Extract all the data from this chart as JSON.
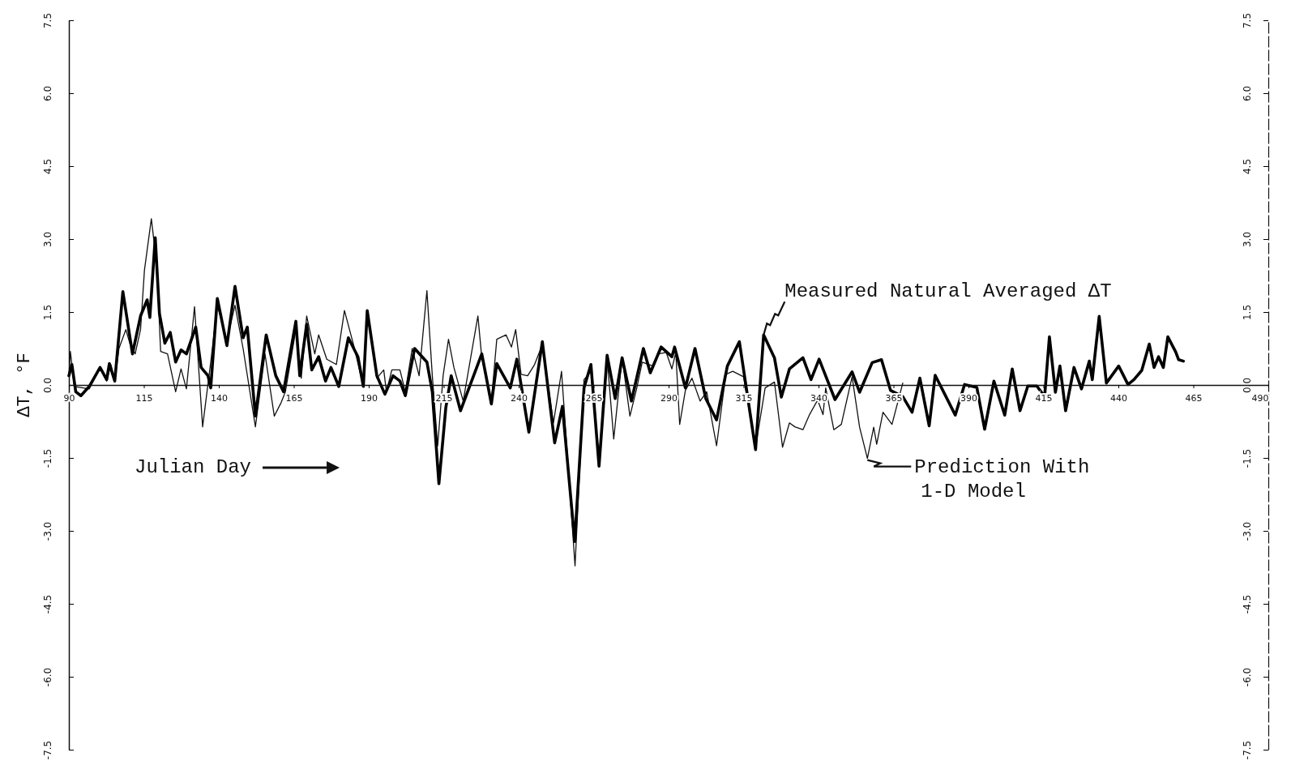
{
  "chart_data": {
    "type": "line",
    "xlabel": "Julian Day",
    "ylabel": "ΔT, °F",
    "xlim": [
      90,
      490
    ],
    "xticks": [
      90,
      115,
      140,
      165,
      190,
      215,
      240,
      265,
      290,
      315,
      340,
      365,
      390,
      415,
      440,
      465,
      490
    ],
    "ylim": [
      -7.5,
      7.5
    ],
    "yticks": [
      {
        "value": 7.5,
        "label": "7.5"
      },
      {
        "value": 6,
        "label": "6.0"
      },
      {
        "value": 4.5,
        "label": "4.5"
      },
      {
        "value": 3,
        "label": "3.0"
      },
      {
        "value": 1.5,
        "label": "1.5"
      },
      {
        "value": 0,
        "label": "0.0"
      },
      {
        "value": -1.5,
        "label": "-1.5"
      },
      {
        "value": -3,
        "label": "-3.0"
      },
      {
        "value": -4.5,
        "label": "-4.5"
      },
      {
        "value": -6,
        "label": "-6.0"
      },
      {
        "value": -7.5,
        "label": "-7.5"
      }
    ],
    "y2lim": [
      -7.5,
      7.5
    ],
    "y2ticks": [
      {
        "value": 7.5,
        "label": "7.5"
      },
      {
        "value": 6,
        "label": "6.0"
      },
      {
        "value": 4.5,
        "label": "4.5"
      },
      {
        "value": 3,
        "label": "3.0"
      },
      {
        "value": 1.5,
        "label": "1.5"
      },
      {
        "value": 0,
        "label": "0.0"
      },
      {
        "value": -1.5,
        "label": "-1.5"
      },
      {
        "value": -3,
        "label": "-3.0"
      },
      {
        "value": -4.5,
        "label": "-4.5"
      },
      {
        "value": -6,
        "label": "-6.0"
      },
      {
        "value": -7.5,
        "label": "-7.5"
      }
    ],
    "grid": false,
    "marker": "none",
    "line_style": "solid",
    "annotations": [
      {
        "text": "Measured Natural Averaged ΔT",
        "x": 321.7,
        "y": 1.03
      },
      {
        "text": "Prediction With\n1-D Model",
        "x": 356.3,
        "y": -1.51
      }
    ],
    "series": [
      {
        "color": "#111111",
        "x": [
          90,
          90.5,
          91.8,
          96.8,
          100.4,
          102.6,
          104,
          105.3,
          106.7,
          109,
          110.3,
          112.1,
          113.9,
          115.2,
          117.5,
          119.3,
          120.6,
          122.9,
          125.6,
          127.4,
          129.2,
          131.9,
          134.6,
          137.3,
          139.5,
          142.7,
          145.4,
          148.1,
          152.2,
          155.4,
          158.5,
          160.8,
          162.2,
          165.7,
          167.5,
          169.3,
          172,
          173.3,
          176,
          179.2,
          181.9,
          185,
          188.2,
          189.5,
          192.7,
          195,
          195.9,
          197.7,
          200.4,
          202.2,
          204.5,
          206.8,
          209.4,
          211.2,
          213,
          214.8,
          216.6,
          218.4,
          221.5,
          226.4,
          227.7,
          230.9,
          232.7,
          235.8,
          237.6,
          239,
          240.8,
          243,
          245.3,
          247.9,
          251.6,
          254.3,
          258.8,
          261.8,
          264.1,
          266.8,
          269.5,
          271.7,
          274.5,
          277.1,
          279.4,
          281.2,
          284.8,
          286.6,
          289.2,
          291.1,
          292.4,
          293.7,
          295.6,
          297.8,
          300.5,
          302.7,
          306,
          309.1,
          311.4,
          315,
          319,
          322.2,
          325.3,
          328,
          330.3,
          332.1,
          334.8,
          337,
          339.7,
          341.5,
          342.4,
          345.1,
          347.6,
          351.2,
          353.7,
          356.3,
          358.4,
          359.4,
          361.5,
          364.5,
          368.1
        ],
        "values": [
          0.19,
          0.69,
          -0.03,
          -0.08,
          0.36,
          0.08,
          0.42,
          0.08,
          0.75,
          1.14,
          0.86,
          0.64,
          1.14,
          2.36,
          3.42,
          2.47,
          0.69,
          0.64,
          -0.14,
          0.33,
          -0.08,
          1.61,
          -0.86,
          0.47,
          1.64,
          0.92,
          1.64,
          0.75,
          -0.86,
          0.64,
          -0.64,
          -0.36,
          -0.14,
          1.14,
          0.14,
          1.42,
          0.64,
          1.03,
          0.53,
          0.42,
          1.53,
          0.81,
          -0.03,
          1.53,
          0.14,
          0.31,
          -0.14,
          0.31,
          0.31,
          -0.14,
          0.75,
          0.19,
          1.94,
          0.19,
          -1.25,
          0.19,
          0.94,
          0.36,
          -0.33,
          1.42,
          0.56,
          -0.33,
          0.94,
          1.03,
          0.78,
          1.14,
          0.22,
          0.19,
          0.42,
          0.83,
          -0.78,
          0.28,
          -3.72,
          0.11,
          0.28,
          -1.5,
          0.56,
          -1.11,
          0.56,
          -0.64,
          -0.06,
          0.47,
          0.39,
          0.64,
          0.67,
          0.33,
          0.67,
          -0.81,
          -0.11,
          0.14,
          -0.33,
          -0.14,
          -1.25,
          0.22,
          0.28,
          0.17,
          -1.28,
          -0.06,
          0.06,
          -1.28,
          -0.78,
          -0.86,
          -0.92,
          -0.61,
          -0.31,
          -0.61,
          -0.06,
          -0.92,
          -0.81,
          0.17,
          -0.87,
          -1.51,
          -0.87,
          -1.22,
          -0.56,
          -0.81,
          0.04
        ]
      },
      {
        "color": "#000000",
        "x": [
          90,
          91,
          92.3,
          94,
          96.8,
          100.4,
          102.6,
          103.5,
          105.3,
          108,
          111.2,
          113.9,
          116.1,
          117,
          118.8,
          120.2,
          122,
          123.8,
          125.6,
          127.4,
          129.2,
          132.3,
          134.1,
          136.4,
          137.3,
          139.5,
          142.7,
          145.4,
          148.1,
          149.5,
          152.2,
          155.8,
          159,
          161.6,
          165.7,
          167,
          169.3,
          171,
          173.3,
          175.6,
          177.4,
          180,
          183.2,
          186.4,
          188.2,
          189.5,
          192.7,
          195.4,
          198.1,
          200.4,
          202.2,
          205.3,
          209.4,
          211.2,
          213.4,
          215.7,
          217.5,
          220.6,
          227.7,
          230.9,
          232.7,
          237.2,
          239.4,
          243.4,
          247.9,
          252,
          254.6,
          258.7,
          261.8,
          264.1,
          266.8,
          269.5,
          272.2,
          274.5,
          277.6,
          281.6,
          283.9,
          287.5,
          291.1,
          292,
          295.6,
          298.8,
          302.4,
          306,
          309.6,
          313.6,
          319,
          321.7,
          325.3,
          327.6,
          330.3,
          334.8,
          337.5,
          340.2,
          345.5,
          351.2,
          353.7,
          357.9,
          361,
          364,
          368.1,
          371.2,
          373.8,
          376.9,
          378.9,
          382.5,
          385.6,
          388.7,
          392.8,
          395.4,
          398.5,
          402.1,
          404.6,
          407.2,
          409.8,
          412.8,
          415.4,
          417,
          419,
          420.5,
          422.4,
          425.2,
          427.7,
          430.3,
          431.3,
          433.6,
          436,
          440.1,
          443.2,
          445.2,
          447.8,
          450.3,
          451.9,
          453.4,
          455,
          456.5,
          459.1,
          460.1,
          461.7
        ],
        "values": [
          0.19,
          0.42,
          -0.14,
          -0.22,
          -0.03,
          0.36,
          0.11,
          0.44,
          0.08,
          1.92,
          0.64,
          1.42,
          1.75,
          1.39,
          3.03,
          1.47,
          0.86,
          1.08,
          0.47,
          0.72,
          0.64,
          1.19,
          0.36,
          0.19,
          -0.06,
          1.78,
          0.81,
          2.03,
          0.97,
          1.19,
          -0.64,
          1.03,
          0.19,
          -0.14,
          1.31,
          0.19,
          1.25,
          0.31,
          0.58,
          0.08,
          0.36,
          -0.03,
          0.97,
          0.58,
          -0.03,
          1.53,
          0.19,
          -0.19,
          0.19,
          0.08,
          -0.22,
          0.75,
          0.47,
          -0.14,
          -2.03,
          -0.47,
          0.19,
          -0.53,
          0.64,
          -0.39,
          0.44,
          -0.06,
          0.53,
          -0.97,
          0.89,
          -1.19,
          -0.44,
          -3.22,
          -0.06,
          0.42,
          -1.67,
          0.61,
          -0.28,
          0.56,
          -0.33,
          0.75,
          0.25,
          0.78,
          0.58,
          0.78,
          -0.06,
          0.75,
          -0.28,
          -0.72,
          0.39,
          0.89,
          -1.33,
          1.03,
          0.56,
          -0.25,
          0.33,
          0.56,
          0.11,
          0.53,
          -0.3,
          0.27,
          -0.15,
          0.46,
          0.52,
          -0.11,
          -0.24,
          -0.56,
          0.14,
          -0.84,
          0.2,
          -0.24,
          -0.62,
          0.01,
          -0.05,
          -0.91,
          0.08,
          -0.62,
          0.33,
          -0.53,
          -0.02,
          -0.02,
          -0.24,
          0.99,
          -0.15,
          0.39,
          -0.53,
          0.36,
          -0.08,
          0.49,
          0.11,
          1.41,
          0.04,
          0.39,
          0.01,
          0.11,
          0.3,
          0.84,
          0.36,
          0.58,
          0.36,
          0.99,
          0.68,
          0.52,
          0.49
        ]
      }
    ]
  }
}
